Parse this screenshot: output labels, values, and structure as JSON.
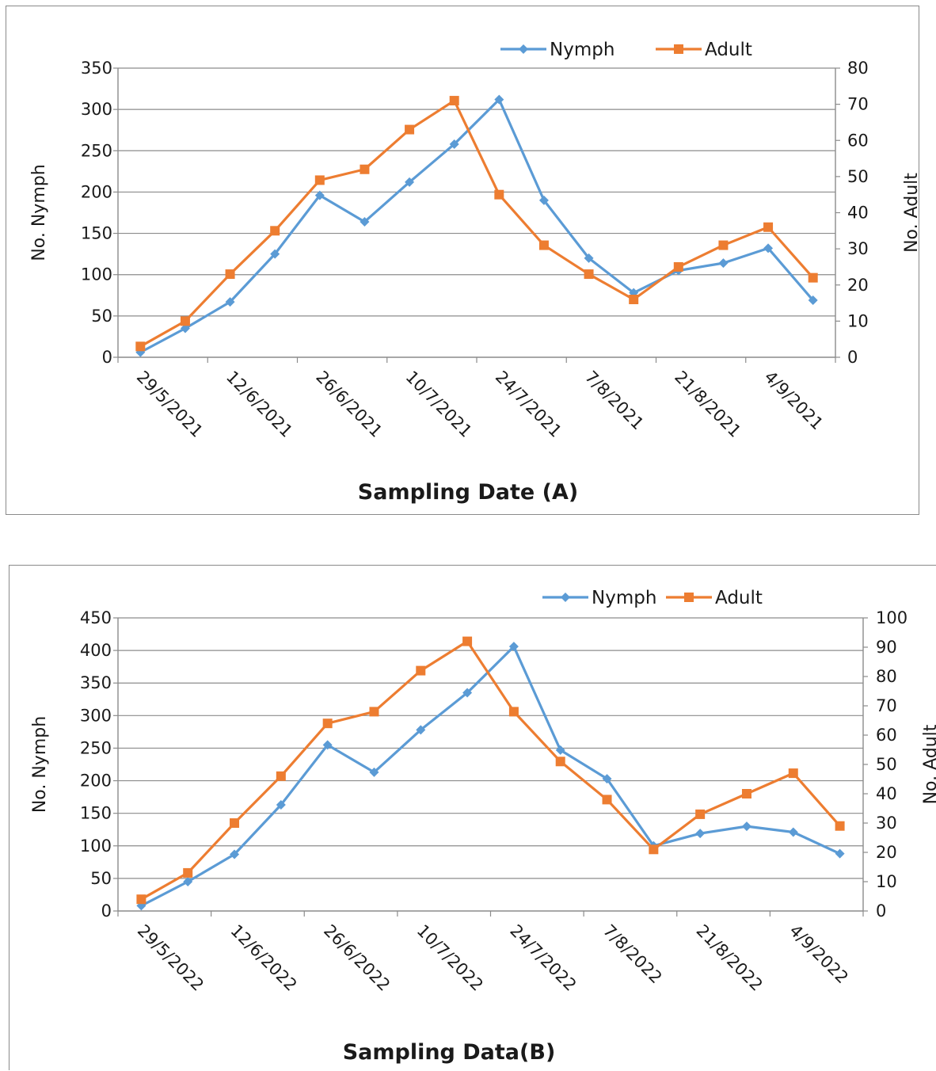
{
  "chart_data": [
    {
      "type": "line",
      "xlabel": "Sampling Date (A)",
      "ylabel": "No. Nymph",
      "y2label": "No. Adult",
      "ylim": [
        0,
        350
      ],
      "y2lim": [
        0,
        80
      ],
      "y_ticks": [
        0,
        50,
        100,
        150,
        200,
        250,
        300,
        350
      ],
      "y2_ticks": [
        0,
        10,
        20,
        30,
        40,
        50,
        60,
        70,
        80
      ],
      "x_tick_labels": [
        "29/5/2021",
        "12/6/2021",
        "26/6/2021",
        "10/7/2021",
        "24/7/2021",
        "7/8/2021",
        "21/8/2021",
        "4/9/2021"
      ],
      "grid": true,
      "legend_position": "top-right",
      "series": [
        {
          "name": "Nymph",
          "axis": "left",
          "color": "#5b9bd5",
          "marker": "diamond",
          "values": [
            6,
            35,
            67,
            125,
            196,
            164,
            212,
            258,
            312,
            190,
            120,
            78,
            105,
            114,
            132,
            69
          ]
        },
        {
          "name": "Adult",
          "axis": "right",
          "color": "#ed7d31",
          "marker": "square",
          "values": [
            3,
            10,
            23,
            35,
            49,
            52,
            63,
            71,
            45,
            31,
            23,
            16,
            25,
            31,
            36,
            22
          ]
        }
      ]
    },
    {
      "type": "line",
      "xlabel": "Sampling Data(B)",
      "ylabel": "No. Nymph",
      "y2label": "No. Adult",
      "ylim": [
        0,
        450
      ],
      "y2lim": [
        0,
        100
      ],
      "y_ticks": [
        0,
        50,
        100,
        150,
        200,
        250,
        300,
        350,
        400,
        450
      ],
      "y2_ticks": [
        0,
        10,
        20,
        30,
        40,
        50,
        60,
        70,
        80,
        90,
        100
      ],
      "x_tick_labels": [
        "29/5/2022",
        "12/6/2022",
        "26/6/2022",
        "10/7/2022",
        "24/7/2022",
        "7/8/2022",
        "21/8/2022",
        "4/9/2022"
      ],
      "grid": true,
      "legend_position": "top-right",
      "series": [
        {
          "name": "Nymph",
          "axis": "left",
          "color": "#5b9bd5",
          "marker": "diamond",
          "values": [
            8,
            45,
            87,
            163,
            255,
            213,
            278,
            335,
            406,
            247,
            203,
            100,
            119,
            130,
            121,
            88
          ]
        },
        {
          "name": "Adult",
          "axis": "right",
          "color": "#ed7d31",
          "marker": "square",
          "values": [
            4,
            13,
            30,
            46,
            64,
            68,
            82,
            92,
            68,
            51,
            38,
            21,
            33,
            40,
            47,
            29
          ]
        }
      ]
    }
  ]
}
